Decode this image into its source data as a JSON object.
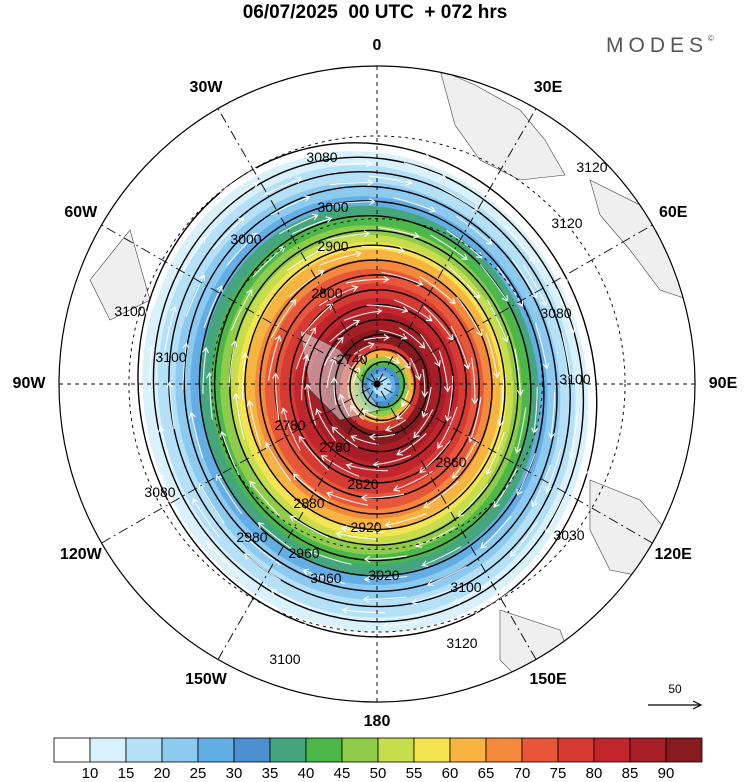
{
  "title": "06/07/2025  00 UTC  + 072 hrs",
  "brand": "MODES",
  "brand_mark": "©",
  "longitude_labels": [
    {
      "id": "lon-0",
      "text": "0",
      "lon": 0
    },
    {
      "id": "lon-30e",
      "text": "30E",
      "lon": 30
    },
    {
      "id": "lon-60e",
      "text": "60E",
      "lon": 60
    },
    {
      "id": "lon-90e",
      "text": "90E",
      "lon": 90
    },
    {
      "id": "lon-120e",
      "text": "120E",
      "lon": 120
    },
    {
      "id": "lon-150e",
      "text": "150E",
      "lon": 150
    },
    {
      "id": "lon-180",
      "text": "180",
      "lon": 180
    },
    {
      "id": "lon-150w",
      "text": "150W",
      "lon": -150
    },
    {
      "id": "lon-120w",
      "text": "120W",
      "lon": -120
    },
    {
      "id": "lon-90w",
      "text": "90W",
      "lon": -90
    },
    {
      "id": "lon-60w",
      "text": "60W",
      "lon": -60
    },
    {
      "id": "lon-30w",
      "text": "30W",
      "lon": -30
    }
  ],
  "contour_labels": [
    "3080",
    "3000",
    "3000",
    "2900",
    "2800",
    "2740",
    "2760",
    "2780",
    "2820",
    "2860",
    "2880",
    "2920",
    "2960",
    "2980",
    "3020",
    "3060",
    "3080",
    "3100",
    "3100",
    "3100",
    "3120",
    "3120",
    "3120",
    "3080",
    "3100",
    "3030",
    "3100"
  ],
  "vector_reference": {
    "value": "50"
  },
  "colorbar": {
    "levels": [
      "10",
      "15",
      "20",
      "25",
      "30",
      "35",
      "40",
      "45",
      "50",
      "55",
      "60",
      "65",
      "70",
      "75",
      "80",
      "85",
      "90"
    ],
    "colors": [
      "#ffffff",
      "#d8f1fb",
      "#b4e1f7",
      "#8ccaf0",
      "#63aee4",
      "#4b8fce",
      "#45a67e",
      "#4cb849",
      "#8fcc4a",
      "#c7dd4c",
      "#f4e451",
      "#f7b440",
      "#f4883b",
      "#e9573a",
      "#d63a33",
      "#c2262c",
      "#a71e26",
      "#861a1f"
    ]
  }
}
